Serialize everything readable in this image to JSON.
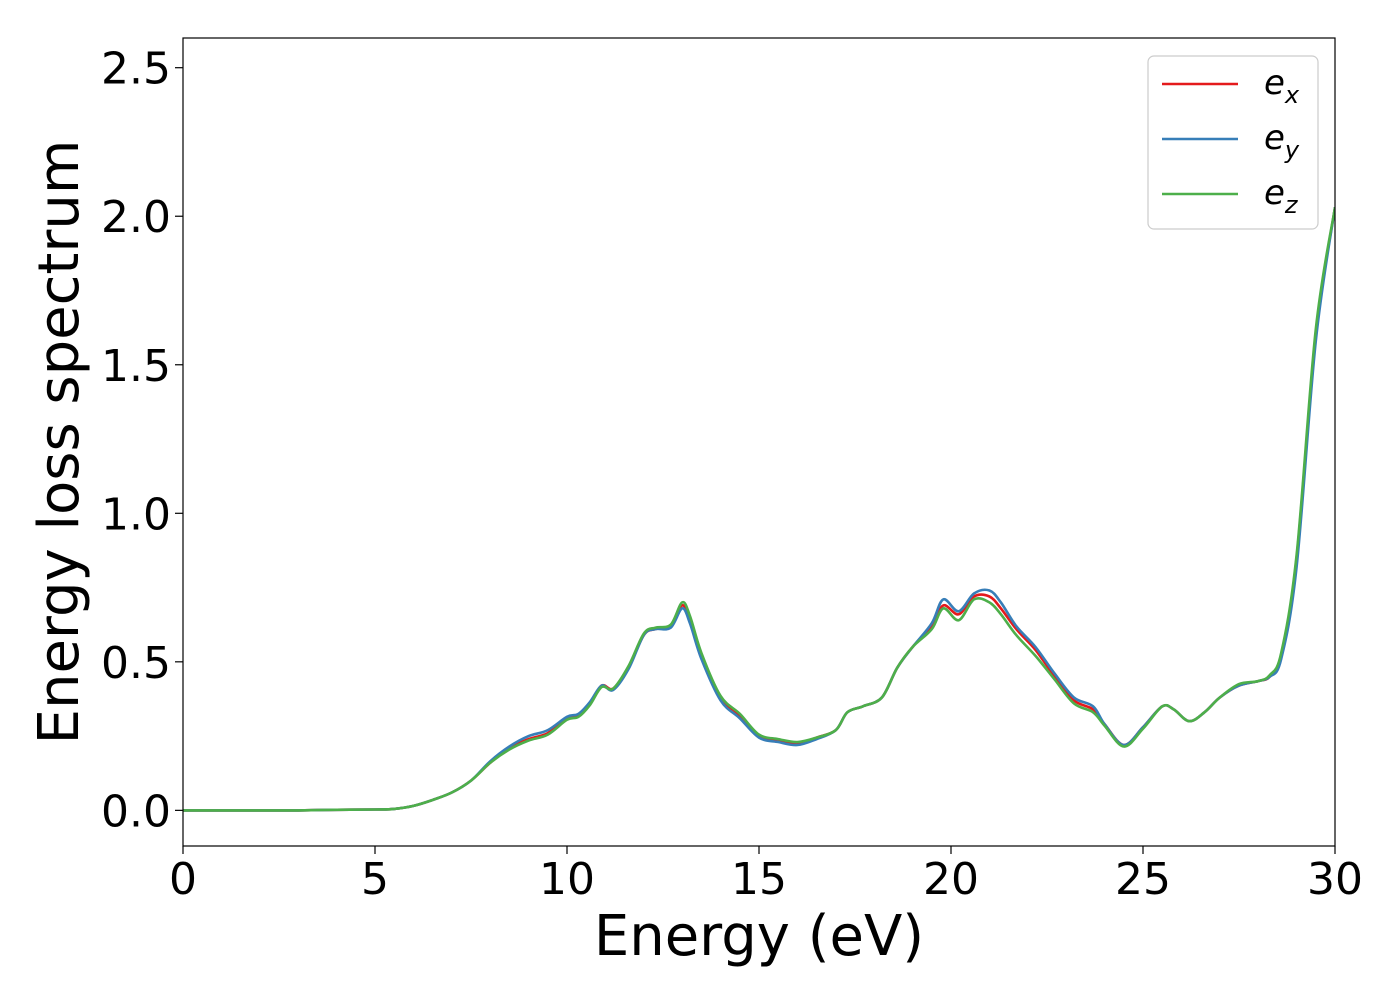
{
  "chart_data": {
    "type": "line",
    "title": "",
    "xlabel": "Energy (eV)",
    "ylabel": "Energy loss spectrum",
    "xlim": [
      0,
      30
    ],
    "ylim": [
      -0.12,
      2.6
    ],
    "xticks": [
      0,
      5,
      10,
      15,
      20,
      25,
      30
    ],
    "xtick_labels": [
      "0",
      "5",
      "10",
      "15",
      "20",
      "25",
      "30"
    ],
    "yticks": [
      0.0,
      0.5,
      1.0,
      1.5,
      2.0,
      2.5
    ],
    "ytick_labels": [
      "0.0",
      "0.5",
      "1.0",
      "1.5",
      "2.0",
      "2.5"
    ],
    "grid": false,
    "legend_position": "top-right",
    "x": [
      0,
      1,
      2,
      3,
      4,
      5,
      5.5,
      6,
      6.5,
      7,
      7.5,
      8,
      8.5,
      9,
      9.5,
      10,
      10.3,
      10.6,
      10.9,
      11.2,
      11.6,
      12,
      12.3,
      12.7,
      13,
      13.2,
      13.5,
      14,
      14.5,
      15,
      15.5,
      16,
      16.5,
      17,
      17.3,
      17.7,
      18.2,
      18.6,
      19,
      19.5,
      19.8,
      20.2,
      20.6,
      21,
      21.3,
      21.7,
      22.2,
      22.7,
      23.2,
      23.7,
      24,
      24.5,
      25,
      25.5,
      25.8,
      26.2,
      26.6,
      27,
      27.5,
      28,
      28.3,
      28.6,
      29,
      29.5,
      30
    ],
    "series": [
      {
        "name": "e_x",
        "label": "e",
        "subscript": "x",
        "color": "#e41a1c",
        "values": [
          0.0,
          0.0,
          0.0,
          0.0,
          0.002,
          0.003,
          0.005,
          0.015,
          0.035,
          0.06,
          0.1,
          0.16,
          0.21,
          0.24,
          0.26,
          0.31,
          0.32,
          0.36,
          0.42,
          0.41,
          0.48,
          0.59,
          0.61,
          0.62,
          0.69,
          0.64,
          0.52,
          0.38,
          0.32,
          0.25,
          0.235,
          0.225,
          0.245,
          0.27,
          0.33,
          0.35,
          0.38,
          0.48,
          0.55,
          0.62,
          0.69,
          0.66,
          0.72,
          0.72,
          0.68,
          0.61,
          0.54,
          0.45,
          0.37,
          0.34,
          0.29,
          0.22,
          0.28,
          0.35,
          0.34,
          0.3,
          0.33,
          0.38,
          0.42,
          0.435,
          0.45,
          0.52,
          0.85,
          1.6,
          2.03
        ]
      },
      {
        "name": "e_y",
        "label": "e",
        "subscript": "y",
        "color": "#377eb8",
        "values": [
          0.0,
          0.0,
          0.0,
          0.0,
          0.002,
          0.003,
          0.005,
          0.015,
          0.035,
          0.06,
          0.1,
          0.165,
          0.215,
          0.25,
          0.27,
          0.315,
          0.325,
          0.365,
          0.42,
          0.405,
          0.475,
          0.59,
          0.61,
          0.615,
          0.68,
          0.63,
          0.51,
          0.37,
          0.31,
          0.245,
          0.23,
          0.22,
          0.24,
          0.27,
          0.33,
          0.35,
          0.38,
          0.48,
          0.55,
          0.63,
          0.71,
          0.67,
          0.73,
          0.74,
          0.7,
          0.62,
          0.55,
          0.46,
          0.38,
          0.35,
          0.29,
          0.22,
          0.28,
          0.35,
          0.34,
          0.3,
          0.33,
          0.38,
          0.42,
          0.435,
          0.45,
          0.51,
          0.82,
          1.58,
          2.03
        ]
      },
      {
        "name": "e_z",
        "label": "e",
        "subscript": "z",
        "color": "#4daf4a",
        "values": [
          0.0,
          0.0,
          0.0,
          0.0,
          0.002,
          0.003,
          0.005,
          0.015,
          0.035,
          0.06,
          0.1,
          0.16,
          0.205,
          0.235,
          0.255,
          0.305,
          0.315,
          0.355,
          0.415,
          0.41,
          0.485,
          0.595,
          0.615,
          0.625,
          0.7,
          0.655,
          0.53,
          0.385,
          0.325,
          0.255,
          0.24,
          0.23,
          0.245,
          0.27,
          0.33,
          0.35,
          0.38,
          0.48,
          0.55,
          0.61,
          0.68,
          0.64,
          0.71,
          0.7,
          0.66,
          0.59,
          0.52,
          0.44,
          0.36,
          0.33,
          0.285,
          0.215,
          0.275,
          0.35,
          0.34,
          0.3,
          0.33,
          0.38,
          0.425,
          0.435,
          0.455,
          0.53,
          0.86,
          1.62,
          2.03
        ]
      }
    ]
  }
}
